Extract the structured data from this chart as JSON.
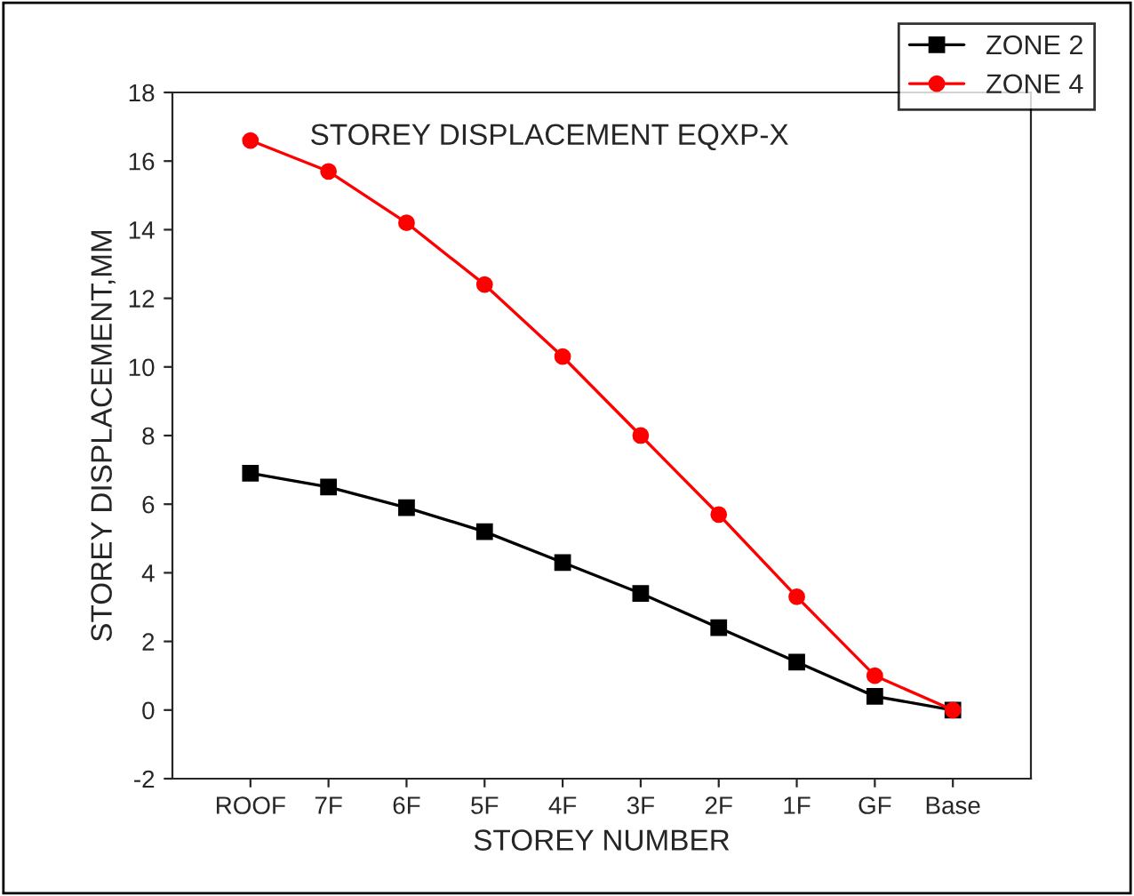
{
  "chart_data": {
    "type": "line",
    "title": "STOREY DISPLACEMENT EQXP-X",
    "xlabel": "STOREY NUMBER",
    "ylabel": "STOREY DISPLACEMENT,MM",
    "categories": [
      "ROOF",
      "7F",
      "6F",
      "5F",
      "4F",
      "3F",
      "2F",
      "1F",
      "GF",
      "Base"
    ],
    "series": [
      {
        "name": "ZONE 2",
        "color": "#000000",
        "marker": "square",
        "values": [
          6.9,
          6.5,
          5.9,
          5.2,
          4.3,
          3.4,
          2.4,
          1.4,
          0.4,
          0
        ]
      },
      {
        "name": "ZONE 4",
        "color": "#ff0000",
        "marker": "circle",
        "values": [
          16.6,
          15.7,
          14.2,
          12.4,
          10.3,
          8.0,
          5.7,
          3.3,
          1.0,
          0
        ]
      }
    ],
    "ylim": [
      -2,
      18
    ],
    "yticks": [
      -2,
      0,
      2,
      4,
      6,
      8,
      10,
      12,
      14,
      16,
      18
    ],
    "grid": false,
    "legend": "top right",
    "line_style": "solid"
  }
}
